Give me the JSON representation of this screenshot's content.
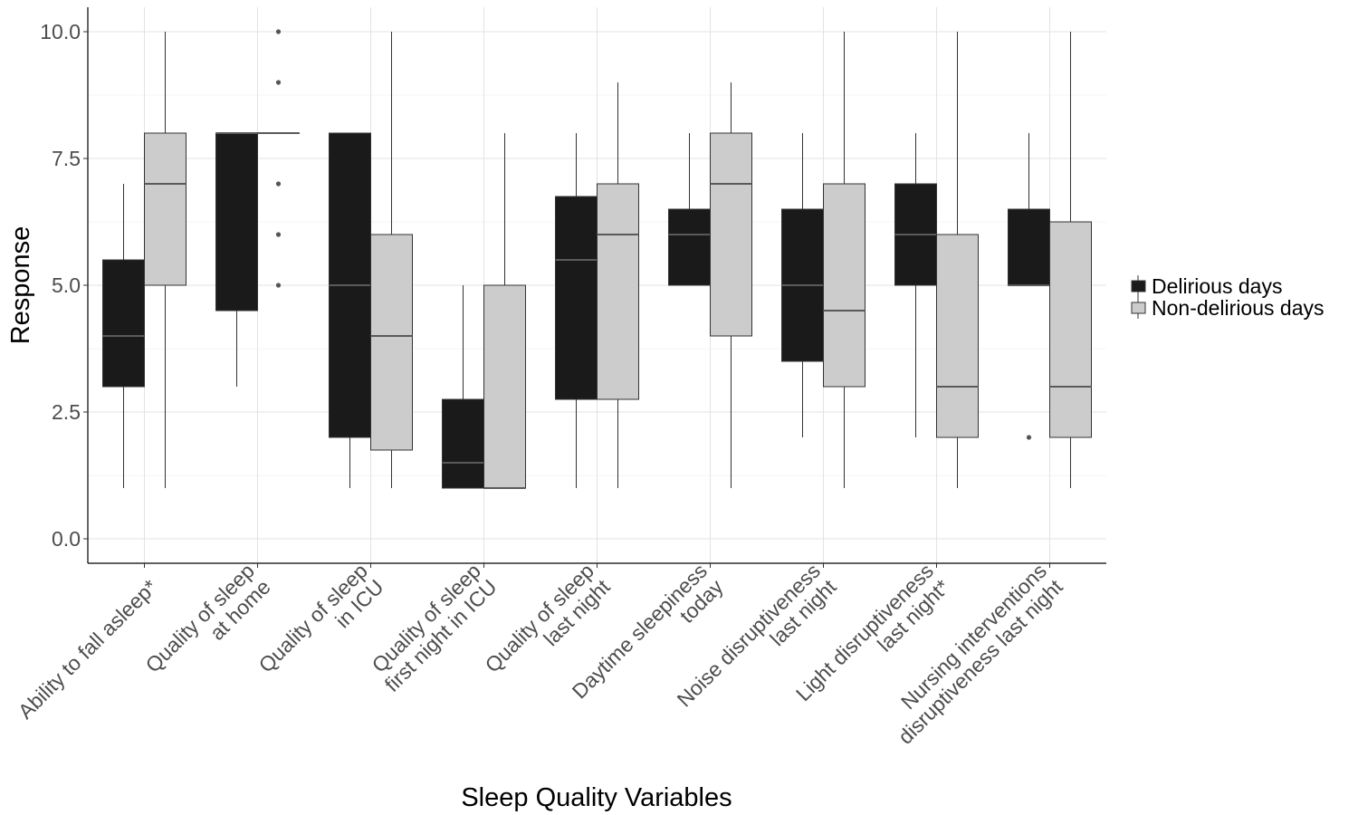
{
  "chart_data": {
    "type": "boxplot",
    "xlabel": "Sleep Quality Variables",
    "ylabel": "Response",
    "ylim": [
      -0.5,
      10.5
    ],
    "yticks": [
      0.0,
      2.5,
      5.0,
      7.5,
      10.0
    ],
    "ytick_labels": [
      "0.0",
      "2.5",
      "5.0",
      "7.5",
      "10.0"
    ],
    "grid": true,
    "legend_position": "right",
    "categories": [
      [
        "Ability to fall asleep*"
      ],
      [
        "Quality of sleep",
        "at home"
      ],
      [
        "Quality of sleep",
        "in ICU"
      ],
      [
        "Quality of sleep",
        "first night in ICU"
      ],
      [
        "Quality of sleep",
        "last night"
      ],
      [
        "Daytime sleepiness",
        "today"
      ],
      [
        "Noise disruptiveness",
        "last night"
      ],
      [
        "Light disruptiveness",
        "last night*"
      ],
      [
        "Nursing interventions",
        "disruptiveness last night"
      ]
    ],
    "series": [
      {
        "name": "Delirious days",
        "color": "#1a1a1a",
        "boxes": [
          {
            "min": 1,
            "q1": 3,
            "median": 4,
            "q3": 5.5,
            "max": 7,
            "outliers": []
          },
          {
            "min": 3,
            "q1": 4.5,
            "median": 8,
            "q3": 8,
            "max": 8,
            "outliers": []
          },
          {
            "min": 1,
            "q1": 2,
            "median": 5,
            "q3": 8,
            "max": 8,
            "outliers": []
          },
          {
            "min": 1,
            "q1": 1,
            "median": 1.5,
            "q3": 2.75,
            "max": 5,
            "outliers": []
          },
          {
            "min": 1,
            "q1": 2.75,
            "median": 5.5,
            "q3": 6.75,
            "max": 8,
            "outliers": []
          },
          {
            "min": 5,
            "q1": 5,
            "median": 6,
            "q3": 6.5,
            "max": 8,
            "outliers": []
          },
          {
            "min": 2,
            "q1": 3.5,
            "median": 5,
            "q3": 6.5,
            "max": 8,
            "outliers": []
          },
          {
            "min": 2,
            "q1": 5,
            "median": 6,
            "q3": 7,
            "max": 8,
            "outliers": []
          },
          {
            "min": 5,
            "q1": 5,
            "median": 5,
            "q3": 6.5,
            "max": 8,
            "outliers": [
              2
            ]
          }
        ]
      },
      {
        "name": "Non-delirious days",
        "color": "#cccccc",
        "boxes": [
          {
            "min": 1,
            "q1": 5,
            "median": 7,
            "q3": 8,
            "max": 10,
            "outliers": []
          },
          {
            "min": 8,
            "q1": 8,
            "median": 8,
            "q3": 8,
            "max": 8,
            "outliers": [
              10,
              9,
              7,
              6,
              5
            ]
          },
          {
            "min": 1,
            "q1": 1.75,
            "median": 4,
            "q3": 6,
            "max": 10,
            "outliers": []
          },
          {
            "min": 1,
            "q1": 1,
            "median": 1,
            "q3": 5,
            "max": 8,
            "outliers": []
          },
          {
            "min": 1,
            "q1": 2.75,
            "median": 6,
            "q3": 7,
            "max": 9,
            "outliers": []
          },
          {
            "min": 1,
            "q1": 4,
            "median": 7,
            "q3": 8,
            "max": 9,
            "outliers": []
          },
          {
            "min": 1,
            "q1": 3,
            "median": 4.5,
            "q3": 7,
            "max": 10,
            "outliers": []
          },
          {
            "min": 1,
            "q1": 2,
            "median": 3,
            "q3": 6,
            "max": 10,
            "outliers": []
          },
          {
            "min": 1,
            "q1": 2,
            "median": 3,
            "q3": 6.25,
            "max": 10,
            "outliers": []
          }
        ]
      }
    ]
  }
}
